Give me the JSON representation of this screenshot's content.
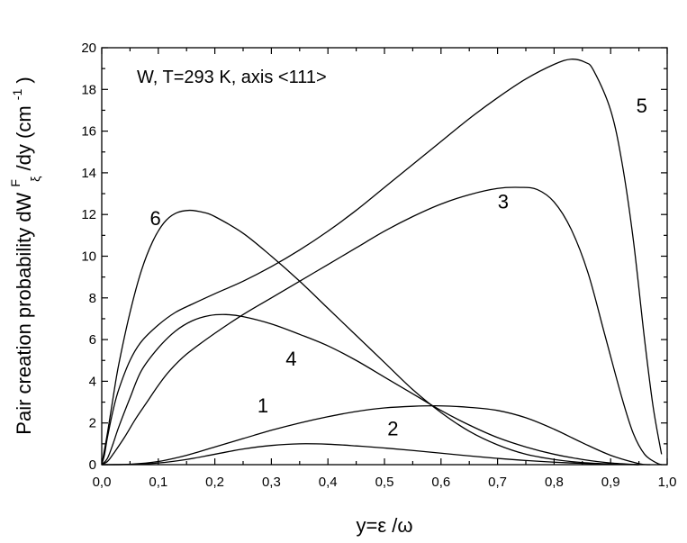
{
  "chart_data": {
    "type": "line",
    "annotation": "W, T=293 K, axis <111>",
    "xlabel": "y=ε /ω",
    "ylabel": {
      "main": "Pair creation probability dW",
      "sup": "F",
      "sub": "ξ",
      "tail": "/dy (cm",
      "exp": "-1",
      "close": ")"
    },
    "xlim": [
      0.0,
      1.0
    ],
    "ylim": [
      0,
      20
    ],
    "x_ticks": [
      "0,0",
      "0,1",
      "0,2",
      "0,3",
      "0,4",
      "0,5",
      "0,6",
      "0,7",
      "0,8",
      "0,9",
      "1,0"
    ],
    "y_ticks": [
      "0",
      "2",
      "4",
      "6",
      "8",
      "10",
      "12",
      "14",
      "16",
      "18",
      "20"
    ],
    "series": [
      {
        "name": "1",
        "label_pos": [
          0.285,
          2.5
        ],
        "points": [
          [
            0.0,
            0
          ],
          [
            0.05,
            0.02
          ],
          [
            0.1,
            0.15
          ],
          [
            0.15,
            0.45
          ],
          [
            0.2,
            0.85
          ],
          [
            0.25,
            1.25
          ],
          [
            0.3,
            1.65
          ],
          [
            0.35,
            2.0
          ],
          [
            0.4,
            2.3
          ],
          [
            0.45,
            2.55
          ],
          [
            0.5,
            2.72
          ],
          [
            0.55,
            2.8
          ],
          [
            0.6,
            2.82
          ],
          [
            0.65,
            2.75
          ],
          [
            0.7,
            2.6
          ],
          [
            0.75,
            2.25
          ],
          [
            0.8,
            1.7
          ],
          [
            0.85,
            1.05
          ],
          [
            0.9,
            0.45
          ],
          [
            0.95,
            0.05
          ],
          [
            0.97,
            0.0
          ]
        ]
      },
      {
        "name": "2",
        "label_pos": [
          0.515,
          1.4
        ],
        "points": [
          [
            0.0,
            0
          ],
          [
            0.05,
            0.01
          ],
          [
            0.1,
            0.08
          ],
          [
            0.15,
            0.25
          ],
          [
            0.2,
            0.5
          ],
          [
            0.25,
            0.75
          ],
          [
            0.3,
            0.92
          ],
          [
            0.35,
            1.0
          ],
          [
            0.4,
            0.98
          ],
          [
            0.45,
            0.9
          ],
          [
            0.5,
            0.8
          ],
          [
            0.55,
            0.68
          ],
          [
            0.6,
            0.55
          ],
          [
            0.65,
            0.42
          ],
          [
            0.7,
            0.3
          ],
          [
            0.75,
            0.2
          ],
          [
            0.8,
            0.12
          ],
          [
            0.85,
            0.06
          ],
          [
            0.9,
            0.02
          ],
          [
            0.95,
            0.0
          ]
        ]
      },
      {
        "name": "3",
        "label_pos": [
          0.71,
          12.3
        ],
        "points": [
          [
            0.0,
            0
          ],
          [
            0.01,
            0.15
          ],
          [
            0.02,
            0.5
          ],
          [
            0.04,
            1.3
          ],
          [
            0.06,
            2.2
          ],
          [
            0.08,
            3.0
          ],
          [
            0.1,
            3.8
          ],
          [
            0.12,
            4.5
          ],
          [
            0.15,
            5.3
          ],
          [
            0.2,
            6.3
          ],
          [
            0.25,
            7.2
          ],
          [
            0.3,
            8.0
          ],
          [
            0.35,
            8.8
          ],
          [
            0.4,
            9.6
          ],
          [
            0.45,
            10.4
          ],
          [
            0.5,
            11.2
          ],
          [
            0.55,
            11.9
          ],
          [
            0.6,
            12.5
          ],
          [
            0.65,
            12.95
          ],
          [
            0.7,
            13.25
          ],
          [
            0.74,
            13.3
          ],
          [
            0.77,
            13.2
          ],
          [
            0.8,
            12.6
          ],
          [
            0.83,
            11.3
          ],
          [
            0.86,
            9.2
          ],
          [
            0.89,
            6.2
          ],
          [
            0.92,
            3.2
          ],
          [
            0.94,
            1.5
          ],
          [
            0.96,
            0.5
          ],
          [
            0.98,
            0.1
          ],
          [
            0.99,
            0.0
          ]
        ]
      },
      {
        "name": "4",
        "label_pos": [
          0.335,
          4.75
        ],
        "points": [
          [
            0.0,
            0
          ],
          [
            0.01,
            0.3
          ],
          [
            0.02,
            1.0
          ],
          [
            0.03,
            1.8
          ],
          [
            0.05,
            3.2
          ],
          [
            0.07,
            4.5
          ],
          [
            0.1,
            5.6
          ],
          [
            0.13,
            6.4
          ],
          [
            0.16,
            6.9
          ],
          [
            0.19,
            7.15
          ],
          [
            0.22,
            7.2
          ],
          [
            0.25,
            7.1
          ],
          [
            0.3,
            6.75
          ],
          [
            0.35,
            6.25
          ],
          [
            0.4,
            5.7
          ],
          [
            0.45,
            5.0
          ],
          [
            0.5,
            4.2
          ],
          [
            0.55,
            3.4
          ],
          [
            0.6,
            2.6
          ],
          [
            0.65,
            1.9
          ],
          [
            0.7,
            1.3
          ],
          [
            0.75,
            0.85
          ],
          [
            0.8,
            0.5
          ],
          [
            0.85,
            0.25
          ],
          [
            0.9,
            0.08
          ],
          [
            0.95,
            0.0
          ]
        ]
      },
      {
        "name": "5",
        "label_pos": [
          0.955,
          16.9
        ],
        "points": [
          [
            0.0,
            0
          ],
          [
            0.005,
            0.5
          ],
          [
            0.01,
            1.3
          ],
          [
            0.02,
            2.6
          ],
          [
            0.03,
            3.6
          ],
          [
            0.05,
            5.0
          ],
          [
            0.07,
            5.9
          ],
          [
            0.1,
            6.7
          ],
          [
            0.13,
            7.3
          ],
          [
            0.16,
            7.7
          ],
          [
            0.2,
            8.2
          ],
          [
            0.25,
            8.8
          ],
          [
            0.3,
            9.5
          ],
          [
            0.35,
            10.3
          ],
          [
            0.4,
            11.2
          ],
          [
            0.45,
            12.2
          ],
          [
            0.5,
            13.3
          ],
          [
            0.55,
            14.4
          ],
          [
            0.6,
            15.5
          ],
          [
            0.65,
            16.6
          ],
          [
            0.7,
            17.6
          ],
          [
            0.75,
            18.5
          ],
          [
            0.8,
            19.2
          ],
          [
            0.83,
            19.45
          ],
          [
            0.855,
            19.3
          ],
          [
            0.87,
            18.9
          ],
          [
            0.9,
            17.0
          ],
          [
            0.92,
            14.5
          ],
          [
            0.94,
            10.8
          ],
          [
            0.96,
            6.0
          ],
          [
            0.975,
            2.8
          ],
          [
            0.99,
            0.5
          ]
        ]
      },
      {
        "name": "6",
        "label_pos": [
          0.095,
          11.5
        ],
        "points": [
          [
            0.0,
            0
          ],
          [
            0.01,
            1.5
          ],
          [
            0.02,
            3.2
          ],
          [
            0.03,
            4.8
          ],
          [
            0.05,
            7.3
          ],
          [
            0.07,
            9.3
          ],
          [
            0.09,
            10.7
          ],
          [
            0.11,
            11.6
          ],
          [
            0.13,
            12.05
          ],
          [
            0.155,
            12.2
          ],
          [
            0.18,
            12.1
          ],
          [
            0.2,
            11.9
          ],
          [
            0.25,
            11.1
          ],
          [
            0.3,
            10.0
          ],
          [
            0.35,
            8.8
          ],
          [
            0.4,
            7.5
          ],
          [
            0.45,
            6.2
          ],
          [
            0.5,
            4.9
          ],
          [
            0.55,
            3.6
          ],
          [
            0.6,
            2.5
          ],
          [
            0.65,
            1.6
          ],
          [
            0.7,
            0.95
          ],
          [
            0.75,
            0.5
          ],
          [
            0.8,
            0.25
          ],
          [
            0.85,
            0.1
          ],
          [
            0.9,
            0.03
          ],
          [
            0.95,
            0.0
          ]
        ]
      }
    ]
  }
}
